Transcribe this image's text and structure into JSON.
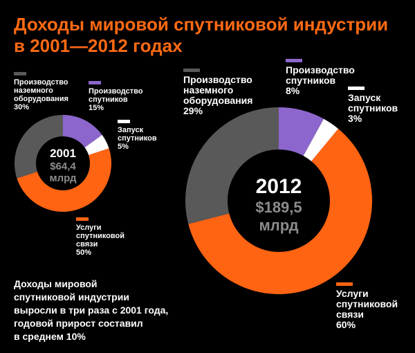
{
  "title": {
    "line1": "Доходы мировой спутниковой индустрии",
    "line2": "в 2001—2012 годах"
  },
  "colors": {
    "ground_equipment": "#595959",
    "manufacturing": "#8c66cc",
    "launch": "#ffffff",
    "services": "#ff6413",
    "title": "#ff6a13",
    "amount_gray": "#8c8c8c"
  },
  "chart_data": [
    {
      "type": "pie",
      "year": "2001",
      "total_line1": "$64,4",
      "total_line2": "млрд",
      "slices": [
        {
          "label_lines": [
            "Производство",
            "спутников"
          ],
          "value": 15,
          "value_text": "15%",
          "color": "#8c66cc"
        },
        {
          "label_lines": [
            "Запуск",
            "спутников"
          ],
          "value": 5,
          "value_text": "5%",
          "color": "#ffffff"
        },
        {
          "label_lines": [
            "Услуги",
            "спутниковой",
            "связи"
          ],
          "value": 50,
          "value_text": "50%",
          "color": "#ff6413"
        },
        {
          "label_lines": [
            "Производство",
            "наземного",
            "оборудования"
          ],
          "value": 30,
          "value_text": "30%",
          "color": "#595959"
        }
      ]
    },
    {
      "type": "pie",
      "year": "2012",
      "total_line1": "$189,5",
      "total_line2": "млрд",
      "slices": [
        {
          "label_lines": [
            "Производство",
            "спутников"
          ],
          "value": 8,
          "value_text": "8%",
          "color": "#8c66cc"
        },
        {
          "label_lines": [
            "Запуск",
            "спутников"
          ],
          "value": 3,
          "value_text": "3%",
          "color": "#ffffff"
        },
        {
          "label_lines": [
            "Услуги",
            "спутниковой",
            "связи"
          ],
          "value": 60,
          "value_text": "60%",
          "color": "#ff6413"
        },
        {
          "label_lines": [
            "Производство",
            "наземного",
            "оборудования"
          ],
          "value": 29,
          "value_text": "29%",
          "color": "#595959"
        }
      ]
    }
  ],
  "note": {
    "lines": [
      "Доходы мировой",
      "спутниковой индустрии",
      "выросли в три раза с 2001 года,",
      "годовой прирост составил",
      "в среднем 10%"
    ]
  }
}
